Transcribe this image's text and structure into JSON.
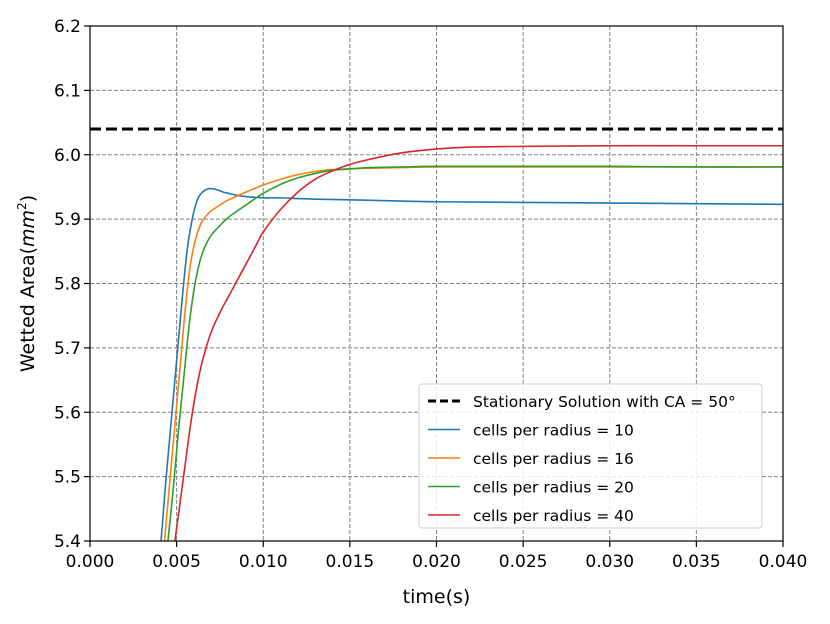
{
  "chart_data": {
    "type": "line",
    "title": "",
    "xlabel": "time(s)",
    "ylabel_text": "Wetted Area(",
    "ylabel_math_base": "mm",
    "ylabel_math_exp": "2",
    "ylabel_close": ")",
    "xlim": [
      0.0,
      0.04
    ],
    "ylim": [
      5.4,
      6.2
    ],
    "x_ticks": [
      0.0,
      0.005,
      0.01,
      0.015,
      0.02,
      0.025,
      0.03,
      0.035,
      0.04
    ],
    "x_tick_labels": [
      "0.000",
      "0.005",
      "0.010",
      "0.015",
      "0.020",
      "0.025",
      "0.030",
      "0.035",
      "0.040"
    ],
    "y_ticks": [
      5.4,
      5.5,
      5.6,
      5.7,
      5.8,
      5.9,
      6.0,
      6.1,
      6.2
    ],
    "y_tick_labels": [
      "5.4",
      "5.5",
      "5.6",
      "5.7",
      "5.8",
      "5.9",
      "6.0",
      "6.1",
      "6.2"
    ],
    "grid": true,
    "legend_position": "lower-right",
    "series": [
      {
        "name": "Stationary Solution with CA = 50°",
        "color": "#000000",
        "dashed": true,
        "x": [
          0.0,
          0.04
        ],
        "y": [
          6.04,
          6.04
        ]
      },
      {
        "name": "cells per radius = 10",
        "color": "#1f77b4",
        "dashed": false,
        "x": [
          0.0041,
          0.0044,
          0.0047,
          0.005,
          0.0053,
          0.0056,
          0.0059,
          0.0062,
          0.0065,
          0.0068,
          0.0071,
          0.0074,
          0.0077,
          0.008,
          0.0085,
          0.009,
          0.0095,
          0.01,
          0.011,
          0.012,
          0.013,
          0.015,
          0.018,
          0.02,
          0.025,
          0.03,
          0.035,
          0.04
        ],
        "y": [
          5.4,
          5.5,
          5.59,
          5.68,
          5.77,
          5.85,
          5.9,
          5.93,
          5.942,
          5.947,
          5.947,
          5.945,
          5.942,
          5.94,
          5.937,
          5.935,
          5.934,
          5.933,
          5.933,
          5.932,
          5.931,
          5.93,
          5.928,
          5.927,
          5.926,
          5.925,
          5.924,
          5.923
        ]
      },
      {
        "name": "cells per radius = 16",
        "color": "#ff7f0e",
        "dashed": false,
        "x": [
          0.0043,
          0.0046,
          0.0049,
          0.0052,
          0.0055,
          0.0058,
          0.0061,
          0.0064,
          0.0067,
          0.007,
          0.0075,
          0.008,
          0.009,
          0.01,
          0.011,
          0.012,
          0.013,
          0.014,
          0.015,
          0.016,
          0.018,
          0.02,
          0.025,
          0.03,
          0.035,
          0.04
        ],
        "y": [
          5.4,
          5.49,
          5.58,
          5.67,
          5.76,
          5.83,
          5.87,
          5.893,
          5.905,
          5.913,
          5.922,
          5.93,
          5.942,
          5.953,
          5.962,
          5.969,
          5.974,
          5.977,
          5.978,
          5.979,
          5.98,
          5.981,
          5.981,
          5.981,
          5.981,
          5.981
        ]
      },
      {
        "name": "cells per radius = 20",
        "color": "#2ca02c",
        "dashed": false,
        "x": [
          0.0045,
          0.0048,
          0.0051,
          0.0054,
          0.0057,
          0.006,
          0.0063,
          0.0066,
          0.007,
          0.0075,
          0.008,
          0.009,
          0.01,
          0.011,
          0.012,
          0.013,
          0.014,
          0.015,
          0.016,
          0.018,
          0.02,
          0.025,
          0.03,
          0.035,
          0.04
        ],
        "y": [
          5.4,
          5.48,
          5.57,
          5.65,
          5.73,
          5.79,
          5.83,
          5.855,
          5.875,
          5.89,
          5.903,
          5.922,
          5.94,
          5.954,
          5.964,
          5.971,
          5.976,
          5.978,
          5.98,
          5.981,
          5.982,
          5.982,
          5.982,
          5.981,
          5.981
        ]
      },
      {
        "name": "cells per radius = 40",
        "color": "#d62728",
        "dashed": false,
        "x": [
          0.0049,
          0.0052,
          0.0055,
          0.0058,
          0.0061,
          0.0064,
          0.0067,
          0.007,
          0.0075,
          0.008,
          0.0085,
          0.009,
          0.0095,
          0.01,
          0.011,
          0.012,
          0.013,
          0.014,
          0.015,
          0.016,
          0.017,
          0.018,
          0.02,
          0.022,
          0.025,
          0.03,
          0.035,
          0.04
        ],
        "y": [
          5.4,
          5.46,
          5.52,
          5.58,
          5.63,
          5.67,
          5.7,
          5.725,
          5.755,
          5.78,
          5.805,
          5.83,
          5.855,
          5.88,
          5.915,
          5.942,
          5.962,
          5.975,
          5.985,
          5.992,
          5.998,
          6.003,
          6.009,
          6.012,
          6.013,
          6.014,
          6.014,
          6.014
        ]
      }
    ]
  }
}
